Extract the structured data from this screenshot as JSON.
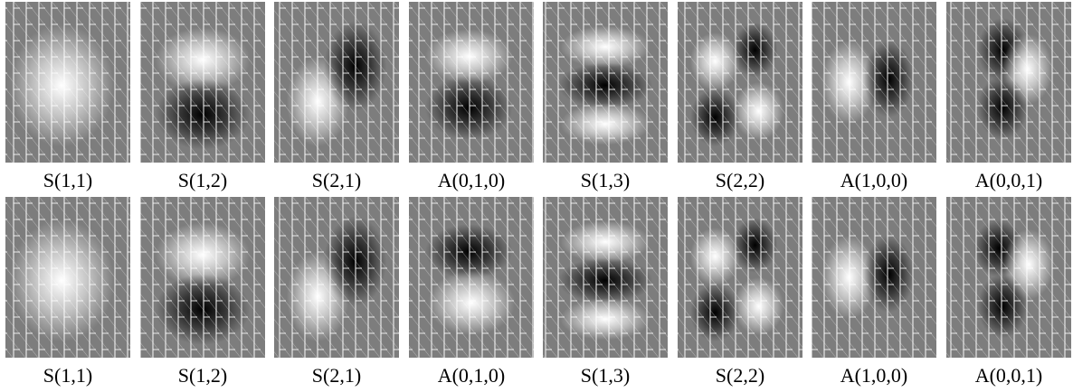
{
  "rows": [
    {
      "labels": [
        "S(1,1)",
        "S(1,2)",
        "S(2,1)",
        "A(0,1,0)",
        "S(1,3)",
        "S(2,2)",
        "A(1,0,0)",
        "A(0,0,1)"
      ]
    },
    {
      "labels": [
        "S(1,1)",
        "S(1,2)",
        "S(2,1)",
        "A(0,1,0)",
        "S(1,3)",
        "S(2,2)",
        "A(1,0,0)",
        "A(0,0,1)"
      ]
    }
  ]
}
